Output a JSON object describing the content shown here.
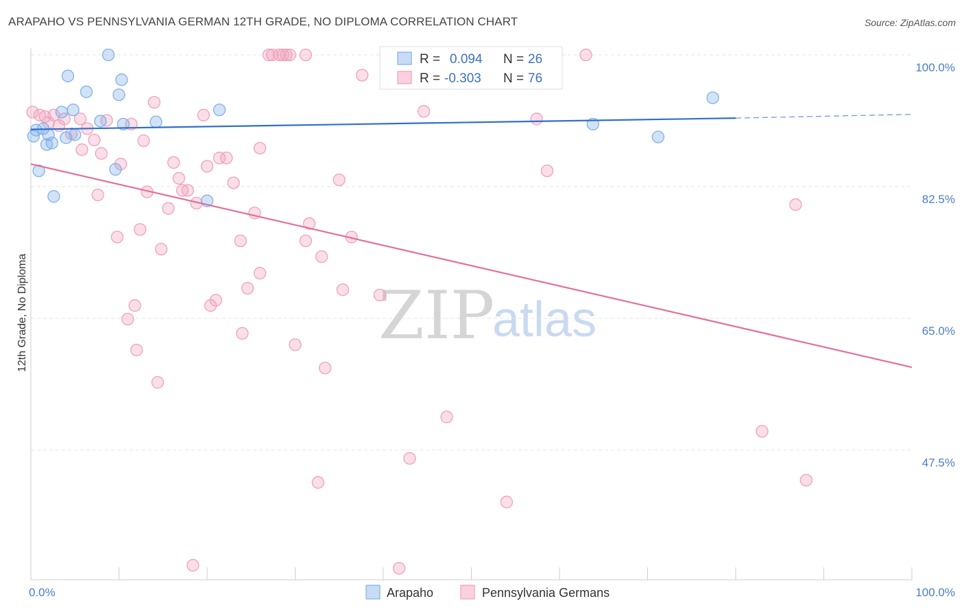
{
  "title": "ARAPAHO VS PENNSYLVANIA GERMAN 12TH GRADE, NO DIPLOMA CORRELATION CHART",
  "source": "Source: ZipAtlas.com",
  "watermark": {
    "zip": "ZIP",
    "atlas": "atlas"
  },
  "legend": {
    "r_label": "R =",
    "n_label": "N =",
    "series": [
      {
        "name": "Arapaho",
        "r": "0.094",
        "n": "26",
        "color": "#7fb0e8"
      },
      {
        "name": "Pennsylvania Germans",
        "r": "-0.303",
        "n": "76",
        "color": "#f0a0bc"
      }
    ]
  },
  "chart_data": {
    "type": "scatter",
    "title": "ARAPAHO VS PENNSYLVANIA GERMAN 12TH GRADE, NO DIPLOMA CORRELATION CHART",
    "xlabel": "",
    "ylabel": "12th Grade, No Diploma",
    "xlim": [
      0,
      100
    ],
    "ylim": [
      30,
      102
    ],
    "x_tick_labels": [
      "0.0%",
      "100.0%"
    ],
    "y_ticks": [
      100.0,
      82.5,
      65.0,
      47.5
    ],
    "y_tick_labels": [
      "100.0%",
      "82.5%",
      "65.0%",
      "47.5%"
    ],
    "grid": true,
    "series": [
      {
        "name": "Arapaho",
        "color": "#7fb0e8",
        "line_color": "#2f6fca",
        "trend": {
          "x0": 0,
          "y0": 90.1,
          "x1": 80,
          "y1": 91.6,
          "dash_to_x": 100,
          "dash_to_y": 92.1
        },
        "points": [
          [
            0.3,
            89.2
          ],
          [
            0.6,
            90.0
          ],
          [
            0.9,
            84.6
          ],
          [
            1.4,
            90.2
          ],
          [
            1.8,
            88.1
          ],
          [
            2.0,
            89.4
          ],
          [
            2.4,
            88.3
          ],
          [
            2.6,
            81.2
          ],
          [
            3.5,
            92.4
          ],
          [
            4.0,
            89.0
          ],
          [
            4.2,
            97.2
          ],
          [
            4.8,
            92.7
          ],
          [
            5.0,
            89.4
          ],
          [
            6.3,
            95.1
          ],
          [
            7.9,
            91.2
          ],
          [
            8.8,
            100.0
          ],
          [
            9.6,
            84.8
          ],
          [
            10.0,
            94.7
          ],
          [
            10.3,
            96.7
          ],
          [
            10.5,
            90.8
          ],
          [
            14.2,
            91.1
          ],
          [
            20.0,
            80.6
          ],
          [
            21.4,
            92.7
          ],
          [
            63.8,
            90.8
          ],
          [
            71.2,
            89.1
          ],
          [
            77.4,
            94.3
          ]
        ]
      },
      {
        "name": "Pennsylvania Germans",
        "color": "#f0a0bc",
        "line_color": "#e0709a",
        "trend": {
          "x0": 0,
          "y0": 85.5,
          "x1": 100,
          "y1": 58.5
        },
        "points": [
          [
            0.2,
            92.4
          ],
          [
            1.0,
            92.0
          ],
          [
            1.6,
            91.8
          ],
          [
            2.0,
            91.0
          ],
          [
            2.6,
            92.0
          ],
          [
            3.2,
            90.6
          ],
          [
            3.8,
            91.5
          ],
          [
            4.6,
            89.5
          ],
          [
            5.6,
            91.5
          ],
          [
            5.8,
            87.4
          ],
          [
            6.4,
            90.2
          ],
          [
            7.2,
            88.7
          ],
          [
            7.6,
            81.4
          ],
          [
            8.0,
            86.9
          ],
          [
            8.6,
            91.3
          ],
          [
            9.8,
            75.8
          ],
          [
            10.2,
            85.5
          ],
          [
            11.0,
            64.9
          ],
          [
            11.4,
            90.8
          ],
          [
            11.8,
            66.7
          ],
          [
            12.0,
            60.8
          ],
          [
            12.4,
            76.8
          ],
          [
            12.8,
            88.6
          ],
          [
            13.2,
            81.8
          ],
          [
            14.0,
            93.7
          ],
          [
            14.4,
            56.5
          ],
          [
            14.8,
            74.2
          ],
          [
            15.6,
            79.6
          ],
          [
            16.2,
            85.7
          ],
          [
            16.8,
            83.6
          ],
          [
            17.2,
            82.0
          ],
          [
            17.8,
            82.0
          ],
          [
            18.4,
            32.2
          ],
          [
            18.8,
            80.3
          ],
          [
            19.6,
            92.0
          ],
          [
            20.0,
            85.2
          ],
          [
            20.4,
            66.7
          ],
          [
            21.0,
            67.4
          ],
          [
            21.4,
            86.3
          ],
          [
            22.2,
            86.3
          ],
          [
            23.0,
            83.0
          ],
          [
            23.8,
            75.3
          ],
          [
            24.0,
            63.0
          ],
          [
            24.6,
            69.0
          ],
          [
            25.4,
            79.0
          ],
          [
            26.0,
            87.6
          ],
          [
            26.0,
            71.0
          ],
          [
            27.0,
            100.0
          ],
          [
            27.4,
            100.0
          ],
          [
            28.2,
            100.0
          ],
          [
            28.6,
            100.0
          ],
          [
            29.0,
            100.0
          ],
          [
            29.4,
            100.0
          ],
          [
            30.0,
            61.5
          ],
          [
            31.2,
            100.0
          ],
          [
            31.2,
            75.3
          ],
          [
            31.6,
            77.6
          ],
          [
            32.6,
            43.2
          ],
          [
            33.0,
            73.2
          ],
          [
            33.4,
            58.4
          ],
          [
            35.0,
            83.4
          ],
          [
            35.4,
            68.8
          ],
          [
            36.4,
            75.8
          ],
          [
            37.6,
            97.3
          ],
          [
            39.6,
            68.1
          ],
          [
            41.8,
            31.8
          ],
          [
            43.0,
            46.4
          ],
          [
            44.6,
            92.5
          ],
          [
            47.2,
            51.9
          ],
          [
            54.0,
            40.6
          ],
          [
            57.4,
            91.5
          ],
          [
            58.6,
            84.6
          ],
          [
            63.0,
            100.0
          ],
          [
            86.8,
            80.1
          ],
          [
            83.0,
            50.0
          ],
          [
            88.0,
            43.5
          ]
        ]
      }
    ]
  }
}
